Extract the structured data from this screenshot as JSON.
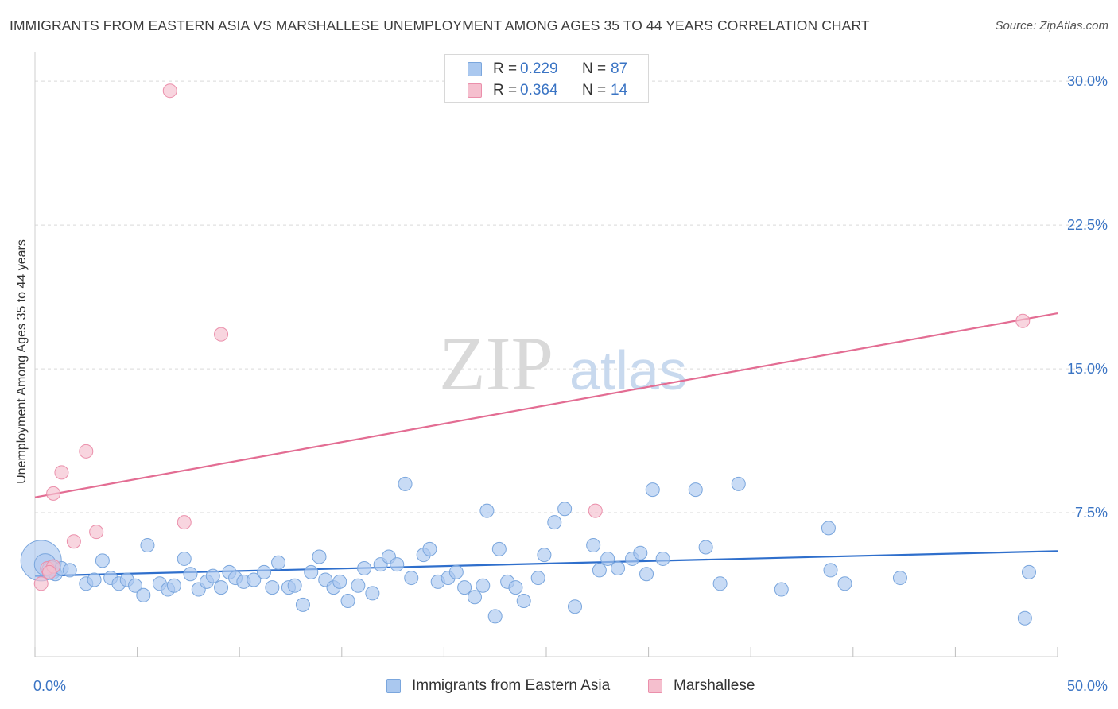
{
  "header": {
    "title": "IMMIGRANTS FROM EASTERN ASIA VS MARSHALLESE UNEMPLOYMENT AMONG AGES 35 TO 44 YEARS CORRELATION CHART",
    "source": "Source: ZipAtlas.com"
  },
  "watermark": {
    "zip": "ZIP",
    "atlas": "atlas"
  },
  "colors": {
    "blue_fill": "#aac8ef",
    "blue_stroke": "#7aa6dd",
    "blue_line": "#2f6fcc",
    "pink_fill": "#f5bfce",
    "pink_stroke": "#eb8fab",
    "pink_line": "#e36d93",
    "tick_label": "#3a74c4",
    "grid": "#d9d9d9"
  },
  "legend_top": {
    "rows": [
      {
        "r_label": "R =",
        "r_value": "0.229",
        "n_label": "N =",
        "n_value": "87"
      },
      {
        "r_label": "R =",
        "r_value": "0.364",
        "n_label": "N =",
        "n_value": "14"
      }
    ]
  },
  "legend_bottom": {
    "items": [
      {
        "label": "Immigrants from Eastern Asia"
      },
      {
        "label": "Marshallese"
      }
    ]
  },
  "chart_data": {
    "type": "scatter",
    "title": "IMMIGRANTS FROM EASTERN ASIA VS MARSHALLESE UNEMPLOYMENT AMONG AGES 35 TO 44 YEARS CORRELATION CHART",
    "xlabel": "",
    "ylabel": "Unemployment Among Ages 35 to 44 years",
    "xlim": [
      0,
      50
    ],
    "ylim": [
      0,
      31
    ],
    "x_tick_labels": [
      {
        "value": 0,
        "label": "0.0%"
      },
      {
        "value": 50,
        "label": "50.0%"
      }
    ],
    "y_tick_labels": [
      {
        "value": 7.5,
        "label": "7.5%"
      },
      {
        "value": 15,
        "label": "15.0%"
      },
      {
        "value": 22.5,
        "label": "22.5%"
      },
      {
        "value": 30,
        "label": "30.0%"
      }
    ],
    "x_minor_ticks": [
      0,
      5,
      10,
      15,
      20,
      25,
      30,
      35,
      40,
      45,
      50
    ],
    "series": [
      {
        "name": "Immigrants from Eastern Asia",
        "R": 0.229,
        "N": 87,
        "trend": {
          "x0": 0,
          "y0": 4.2,
          "x1": 50,
          "y1": 5.5
        },
        "points": [
          [
            0.3,
            5.0,
            3
          ],
          [
            0.5,
            4.8,
            1.6
          ],
          [
            0.8,
            4.5,
            1.4
          ],
          [
            1.0,
            4.3,
            1
          ],
          [
            1.3,
            4.6,
            1
          ],
          [
            1.7,
            4.5,
            1
          ],
          [
            2.5,
            3.8,
            1
          ],
          [
            2.9,
            4.0,
            1
          ],
          [
            3.3,
            5.0,
            1
          ],
          [
            3.7,
            4.1,
            1
          ],
          [
            4.1,
            3.8,
            1
          ],
          [
            4.5,
            4.0,
            1
          ],
          [
            4.9,
            3.7,
            1
          ],
          [
            5.3,
            3.2,
            1
          ],
          [
            5.5,
            5.8,
            1
          ],
          [
            6.1,
            3.8,
            1
          ],
          [
            6.5,
            3.5,
            1
          ],
          [
            6.8,
            3.7,
            1
          ],
          [
            7.3,
            5.1,
            1
          ],
          [
            7.6,
            4.3,
            1
          ],
          [
            8.0,
            3.5,
            1
          ],
          [
            8.4,
            3.9,
            1
          ],
          [
            8.7,
            4.2,
            1
          ],
          [
            9.1,
            3.6,
            1
          ],
          [
            9.5,
            4.4,
            1
          ],
          [
            9.8,
            4.1,
            1
          ],
          [
            10.2,
            3.9,
            1
          ],
          [
            10.7,
            4.0,
            1
          ],
          [
            11.2,
            4.4,
            1
          ],
          [
            11.6,
            3.6,
            1
          ],
          [
            11.9,
            4.9,
            1
          ],
          [
            12.4,
            3.6,
            1
          ],
          [
            12.7,
            3.7,
            1
          ],
          [
            13.1,
            2.7,
            1
          ],
          [
            13.5,
            4.4,
            1
          ],
          [
            13.9,
            5.2,
            1
          ],
          [
            14.2,
            4.0,
            1
          ],
          [
            14.6,
            3.6,
            1
          ],
          [
            14.9,
            3.9,
            1
          ],
          [
            15.3,
            2.9,
            1
          ],
          [
            15.8,
            3.7,
            1
          ],
          [
            16.1,
            4.6,
            1
          ],
          [
            16.5,
            3.3,
            1
          ],
          [
            16.9,
            4.8,
            1
          ],
          [
            17.3,
            5.2,
            1
          ],
          [
            17.7,
            4.8,
            1
          ],
          [
            18.1,
            9.0,
            1
          ],
          [
            18.4,
            4.1,
            1
          ],
          [
            19.0,
            5.3,
            1
          ],
          [
            19.3,
            5.6,
            1
          ],
          [
            19.7,
            3.9,
            1
          ],
          [
            20.2,
            4.1,
            1
          ],
          [
            20.6,
            4.4,
            1
          ],
          [
            21.0,
            3.6,
            1
          ],
          [
            21.5,
            3.1,
            1
          ],
          [
            21.9,
            3.7,
            1
          ],
          [
            22.1,
            7.6,
            1
          ],
          [
            22.5,
            2.1,
            1
          ],
          [
            22.7,
            5.6,
            1
          ],
          [
            23.1,
            3.9,
            1
          ],
          [
            23.5,
            3.6,
            1
          ],
          [
            23.9,
            2.9,
            1
          ],
          [
            24.6,
            4.1,
            1
          ],
          [
            24.9,
            5.3,
            1
          ],
          [
            25.4,
            7.0,
            1
          ],
          [
            25.9,
            7.7,
            1
          ],
          [
            26.4,
            2.6,
            1
          ],
          [
            27.3,
            5.8,
            1
          ],
          [
            27.6,
            4.5,
            1
          ],
          [
            28.0,
            5.1,
            1
          ],
          [
            28.5,
            4.6,
            1
          ],
          [
            29.2,
            5.1,
            1
          ],
          [
            29.6,
            5.4,
            1
          ],
          [
            29.9,
            4.3,
            1
          ],
          [
            30.2,
            8.7,
            1
          ],
          [
            30.7,
            5.1,
            1
          ],
          [
            32.3,
            8.7,
            1
          ],
          [
            32.8,
            5.7,
            1
          ],
          [
            33.5,
            3.8,
            1
          ],
          [
            34.4,
            9.0,
            1
          ],
          [
            36.5,
            3.5,
            1
          ],
          [
            38.8,
            6.7,
            1
          ],
          [
            38.9,
            4.5,
            1
          ],
          [
            39.6,
            3.8,
            1
          ],
          [
            42.3,
            4.1,
            1
          ],
          [
            48.4,
            2.0,
            1
          ],
          [
            48.6,
            4.4,
            1
          ]
        ]
      },
      {
        "name": "Marshallese",
        "R": 0.364,
        "N": 14,
        "trend": {
          "x0": 0,
          "y0": 8.3,
          "x1": 50,
          "y1": 17.9
        },
        "points": [
          [
            0.3,
            3.8
          ],
          [
            0.6,
            4.6
          ],
          [
            0.9,
            4.7
          ],
          [
            0.9,
            8.5
          ],
          [
            1.3,
            9.6
          ],
          [
            1.9,
            6.0
          ],
          [
            2.5,
            10.7
          ],
          [
            3.0,
            6.5
          ],
          [
            6.6,
            29.5
          ],
          [
            7.3,
            7.0
          ],
          [
            9.1,
            16.8
          ],
          [
            27.4,
            7.6
          ],
          [
            48.3,
            17.5
          ],
          [
            0.7,
            4.4
          ]
        ]
      }
    ]
  }
}
